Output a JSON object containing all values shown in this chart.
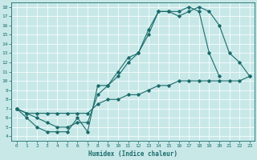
{
  "title": "",
  "xlabel": "Humidex (Indice chaleur)",
  "bg_color": "#c8e8e8",
  "grid_color": "#ffffff",
  "line_color": "#1a6b6b",
  "xlim": [
    -0.5,
    23.5
  ],
  "ylim": [
    3.5,
    18.5
  ],
  "xticks": [
    0,
    1,
    2,
    3,
    4,
    5,
    6,
    7,
    8,
    9,
    10,
    11,
    12,
    13,
    14,
    15,
    16,
    17,
    18,
    19,
    20,
    21,
    22,
    23
  ],
  "yticks": [
    4,
    5,
    6,
    7,
    8,
    9,
    10,
    11,
    12,
    13,
    14,
    15,
    16,
    17,
    18
  ],
  "line1_x": [
    0,
    1,
    2,
    3,
    4,
    5,
    6,
    7,
    8,
    9,
    10,
    11,
    12,
    13,
    14,
    15,
    16,
    17,
    18,
    19,
    20,
    21,
    22,
    23
  ],
  "line1_y": [
    7.0,
    6.0,
    5.0,
    4.5,
    4.5,
    4.5,
    6.0,
    4.5,
    9.5,
    9.5,
    11.0,
    12.5,
    13.0,
    15.0,
    17.5,
    17.5,
    17.0,
    17.5,
    18.0,
    17.5,
    16.0,
    13.0,
    12.0,
    10.5
  ],
  "line2_x": [
    0,
    1,
    2,
    3,
    4,
    5,
    6,
    7,
    8,
    9,
    10,
    11,
    12,
    13,
    14,
    15,
    16,
    17,
    18,
    19,
    20
  ],
  "line2_y": [
    7.0,
    6.5,
    6.0,
    5.5,
    5.0,
    5.0,
    5.5,
    5.5,
    8.5,
    9.5,
    10.5,
    12.0,
    13.0,
    15.5,
    17.5,
    17.5,
    17.5,
    18.0,
    17.5,
    13.0,
    10.5
  ],
  "line3_x": [
    0,
    1,
    2,
    3,
    4,
    5,
    6,
    7,
    8,
    9,
    10,
    11,
    12,
    13,
    14,
    15,
    16,
    17,
    18,
    19,
    20,
    21,
    22,
    23
  ],
  "line3_y": [
    7.0,
    6.5,
    6.5,
    6.5,
    6.5,
    6.5,
    6.5,
    6.5,
    7.5,
    8.0,
    8.0,
    8.5,
    8.5,
    9.0,
    9.5,
    9.5,
    10.0,
    10.0,
    10.0,
    10.0,
    10.0,
    10.0,
    10.0,
    10.5
  ]
}
